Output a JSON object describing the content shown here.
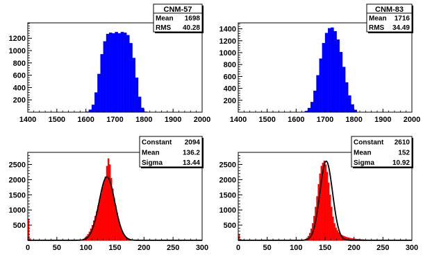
{
  "chart_data": [
    {
      "type": "histogram",
      "title": "CNM-57",
      "color": "#0000ff",
      "xlim": [
        1400,
        2000
      ],
      "ylim": [
        0,
        1450
      ],
      "x_ticks": [
        1400,
        1500,
        1600,
        1700,
        1800,
        1900,
        2000
      ],
      "y_ticks": [
        200,
        400,
        600,
        800,
        1000,
        1200
      ],
      "bin_width": 10,
      "bins": [
        {
          "x": 1600,
          "y": 10
        },
        {
          "x": 1610,
          "y": 40
        },
        {
          "x": 1620,
          "y": 120
        },
        {
          "x": 1630,
          "y": 320
        },
        {
          "x": 1640,
          "y": 620
        },
        {
          "x": 1650,
          "y": 940
        },
        {
          "x": 1660,
          "y": 1150
        },
        {
          "x": 1670,
          "y": 1270
        },
        {
          "x": 1680,
          "y": 1290
        },
        {
          "x": 1690,
          "y": 1280
        },
        {
          "x": 1700,
          "y": 1300
        },
        {
          "x": 1710,
          "y": 1280
        },
        {
          "x": 1720,
          "y": 1300
        },
        {
          "x": 1730,
          "y": 1290
        },
        {
          "x": 1740,
          "y": 1250
        },
        {
          "x": 1750,
          "y": 1120
        },
        {
          "x": 1760,
          "y": 880
        },
        {
          "x": 1770,
          "y": 560
        },
        {
          "x": 1780,
          "y": 250
        },
        {
          "x": 1790,
          "y": 70
        },
        {
          "x": 1800,
          "y": 10
        }
      ],
      "stats": [
        {
          "label": "Mean",
          "value": "1698"
        },
        {
          "label": "RMS",
          "value": "40.28"
        }
      ]
    },
    {
      "type": "histogram",
      "title": "CNM-83",
      "color": "#0000ff",
      "xlim": [
        1400,
        2000
      ],
      "ylim": [
        0,
        1500
      ],
      "x_ticks": [
        1400,
        1500,
        1600,
        1700,
        1800,
        1900,
        2000
      ],
      "y_ticks": [
        200,
        400,
        600,
        800,
        1000,
        1200,
        1400
      ],
      "bin_width": 10,
      "bins": [
        {
          "x": 1630,
          "y": 20
        },
        {
          "x": 1640,
          "y": 70
        },
        {
          "x": 1650,
          "y": 170
        },
        {
          "x": 1660,
          "y": 360
        },
        {
          "x": 1670,
          "y": 620
        },
        {
          "x": 1680,
          "y": 900
        },
        {
          "x": 1690,
          "y": 1160
        },
        {
          "x": 1700,
          "y": 1330
        },
        {
          "x": 1710,
          "y": 1410
        },
        {
          "x": 1720,
          "y": 1420
        },
        {
          "x": 1730,
          "y": 1360
        },
        {
          "x": 1740,
          "y": 1220
        },
        {
          "x": 1750,
          "y": 1010
        },
        {
          "x": 1760,
          "y": 760
        },
        {
          "x": 1770,
          "y": 500
        },
        {
          "x": 1780,
          "y": 280
        },
        {
          "x": 1790,
          "y": 130
        },
        {
          "x": 1800,
          "y": 40
        }
      ],
      "stats": [
        {
          "label": "Mean",
          "value": "1716"
        },
        {
          "label": "RMS",
          "value": "34.49"
        }
      ]
    },
    {
      "type": "histogram",
      "title": "",
      "color": "#ff0000",
      "xlim": [
        0,
        300
      ],
      "ylim": [
        0,
        2900
      ],
      "x_ticks": [
        0,
        50,
        100,
        150,
        200,
        250,
        300
      ],
      "y_ticks": [
        500,
        1000,
        1500,
        2000,
        2500
      ],
      "bin_width": 2.5,
      "bins": [
        {
          "x": 0,
          "y": 700
        },
        {
          "x": 2.5,
          "y": 60
        },
        {
          "x": 95,
          "y": 50
        },
        {
          "x": 97.5,
          "y": 90
        },
        {
          "x": 100,
          "y": 140
        },
        {
          "x": 102.5,
          "y": 200
        },
        {
          "x": 105,
          "y": 280
        },
        {
          "x": 107.5,
          "y": 380
        },
        {
          "x": 110,
          "y": 500
        },
        {
          "x": 112.5,
          "y": 650
        },
        {
          "x": 115,
          "y": 800
        },
        {
          "x": 117.5,
          "y": 950
        },
        {
          "x": 120,
          "y": 1150
        },
        {
          "x": 122.5,
          "y": 1350
        },
        {
          "x": 125,
          "y": 1550
        },
        {
          "x": 127.5,
          "y": 1750
        },
        {
          "x": 130,
          "y": 1950
        },
        {
          "x": 132.5,
          "y": 2100
        },
        {
          "x": 135,
          "y": 2450
        },
        {
          "x": 137.5,
          "y": 2700
        },
        {
          "x": 140,
          "y": 2500
        },
        {
          "x": 142.5,
          "y": 2050
        },
        {
          "x": 145,
          "y": 1700
        },
        {
          "x": 147.5,
          "y": 1400
        },
        {
          "x": 150,
          "y": 1150
        },
        {
          "x": 152.5,
          "y": 900
        },
        {
          "x": 155,
          "y": 680
        },
        {
          "x": 157.5,
          "y": 500
        },
        {
          "x": 160,
          "y": 350
        },
        {
          "x": 162.5,
          "y": 240
        },
        {
          "x": 165,
          "y": 160
        },
        {
          "x": 167.5,
          "y": 100
        },
        {
          "x": 170,
          "y": 60
        },
        {
          "x": 172.5,
          "y": 30
        }
      ],
      "fit": {
        "constant": 2094,
        "mean": 136.2,
        "sigma": 13.44
      },
      "stats": [
        {
          "label": "Constant",
          "value": "2094"
        },
        {
          "label": "Mean",
          "value": "136.2"
        },
        {
          "label": "Sigma",
          "value": "13.44"
        }
      ]
    },
    {
      "type": "histogram",
      "title": "",
      "color": "#ff0000",
      "xlim": [
        0,
        300
      ],
      "ylim": [
        0,
        2900
      ],
      "x_ticks": [
        0,
        50,
        100,
        150,
        200,
        250,
        300
      ],
      "y_ticks": [
        500,
        1000,
        1500,
        2000,
        2500
      ],
      "bin_width": 2.5,
      "bins": [
        {
          "x": 0,
          "y": 200
        },
        {
          "x": 2.5,
          "y": 40
        },
        {
          "x": 115,
          "y": 40
        },
        {
          "x": 117.5,
          "y": 80
        },
        {
          "x": 120,
          "y": 140
        },
        {
          "x": 122.5,
          "y": 240
        },
        {
          "x": 125,
          "y": 380
        },
        {
          "x": 127.5,
          "y": 560
        },
        {
          "x": 130,
          "y": 800
        },
        {
          "x": 132.5,
          "y": 1100
        },
        {
          "x": 135,
          "y": 1450
        },
        {
          "x": 137.5,
          "y": 1850
        },
        {
          "x": 140,
          "y": 2200
        },
        {
          "x": 142.5,
          "y": 2450
        },
        {
          "x": 145,
          "y": 2550
        },
        {
          "x": 147.5,
          "y": 2620
        },
        {
          "x": 150,
          "y": 2500
        },
        {
          "x": 152.5,
          "y": 2250
        },
        {
          "x": 155,
          "y": 1900
        },
        {
          "x": 157.5,
          "y": 1500
        },
        {
          "x": 160,
          "y": 1100
        },
        {
          "x": 162.5,
          "y": 780
        },
        {
          "x": 165,
          "y": 560
        },
        {
          "x": 167.5,
          "y": 420
        },
        {
          "x": 170,
          "y": 330
        },
        {
          "x": 172.5,
          "y": 260
        },
        {
          "x": 175,
          "y": 210
        },
        {
          "x": 177.5,
          "y": 175
        },
        {
          "x": 180,
          "y": 150
        },
        {
          "x": 182.5,
          "y": 130
        },
        {
          "x": 185,
          "y": 110
        },
        {
          "x": 187.5,
          "y": 95
        },
        {
          "x": 190,
          "y": 85
        },
        {
          "x": 192.5,
          "y": 75
        },
        {
          "x": 195,
          "y": 65
        },
        {
          "x": 197.5,
          "y": 58
        },
        {
          "x": 200,
          "y": 52
        },
        {
          "x": 202.5,
          "y": 46
        },
        {
          "x": 205,
          "y": 42
        },
        {
          "x": 207.5,
          "y": 38
        },
        {
          "x": 210,
          "y": 34
        },
        {
          "x": 212.5,
          "y": 30
        },
        {
          "x": 215,
          "y": 26
        },
        {
          "x": 217.5,
          "y": 22
        },
        {
          "x": 220,
          "y": 18
        },
        {
          "x": 222.5,
          "y": 14
        },
        {
          "x": 225,
          "y": 10
        }
      ],
      "fit": {
        "constant": 2610,
        "mean": 152,
        "sigma": 10.92
      },
      "stats": [
        {
          "label": "Constant",
          "value": "2610"
        },
        {
          "label": "Mean",
          "value": "152"
        },
        {
          "label": "Sigma",
          "value": "10.92"
        }
      ]
    }
  ]
}
